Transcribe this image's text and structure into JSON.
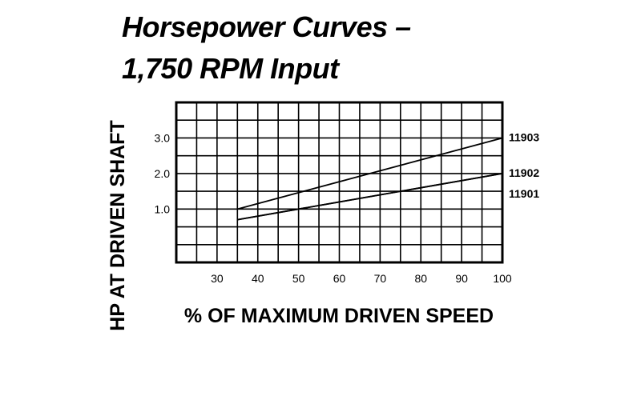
{
  "title_line1": "Horsepower Curves –",
  "title_line2": "1,750 RPM Input",
  "chart_data": {
    "type": "line",
    "xlabel": "% OF MAXIMUM DRIVEN SPEED",
    "ylabel": "HP AT DRIVEN SHAFT",
    "xlim": [
      20,
      100
    ],
    "ylim": [
      -0.5,
      4.0
    ],
    "x_ticks": [
      30,
      40,
      50,
      60,
      70,
      80,
      90,
      100
    ],
    "y_ticks": [
      1.0,
      2.0,
      3.0
    ],
    "y_tick_labels": [
      "1.0",
      "2.0",
      "3.0"
    ],
    "grid": true,
    "line_color": "#000000",
    "series": [
      {
        "name": "11903",
        "x": [
          35,
          100
        ],
        "y": [
          1.0,
          3.0
        ]
      },
      {
        "name": "11902",
        "x": [
          35,
          100
        ],
        "y": [
          0.7,
          2.0
        ]
      },
      {
        "name": "11901",
        "x": [
          35,
          100
        ],
        "y": [
          0.7,
          2.0
        ]
      }
    ]
  }
}
